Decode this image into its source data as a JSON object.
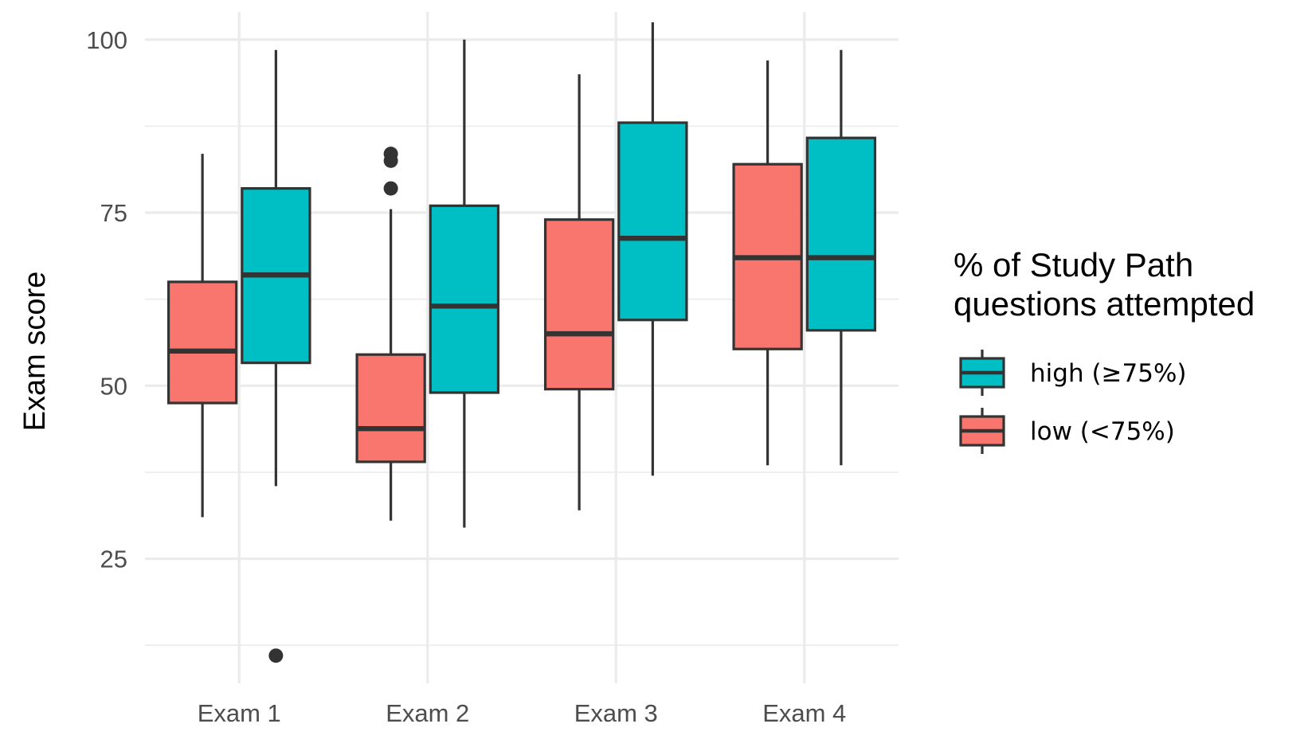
{
  "chart_data": {
    "type": "boxplot",
    "title": "",
    "xlabel": "",
    "ylabel": "Exam score",
    "ylim": [
      7,
      104
    ],
    "yticks": [
      25,
      50,
      75,
      100
    ],
    "grid": true,
    "legend_position": "right",
    "categories": [
      "Exam 1",
      "Exam 2",
      "Exam 3",
      "Exam 4"
    ],
    "legend": {
      "title_lines": [
        "% of Study Path",
        "questions attempted"
      ],
      "entries": [
        {
          "series": "high",
          "label": "high (≥75%)"
        },
        {
          "series": "low",
          "label": "low (<75%)"
        }
      ]
    },
    "series": [
      {
        "key": "low",
        "name": "low (<75%)",
        "color": "#F8766D",
        "boxes": [
          {
            "category": "Exam 1",
            "whisker_low": 31,
            "q1": 47.5,
            "median": 55,
            "q3": 65,
            "whisker_high": 83.5,
            "outliers": []
          },
          {
            "category": "Exam 2",
            "whisker_low": 30.5,
            "q1": 39,
            "median": 43.8,
            "q3": 54.5,
            "whisker_high": 75.5,
            "outliers": [
              78.5,
              82.5,
              83.5
            ]
          },
          {
            "category": "Exam 3",
            "whisker_low": 32,
            "q1": 49.5,
            "median": 57.5,
            "q3": 74,
            "whisker_high": 95,
            "outliers": []
          },
          {
            "category": "Exam 4",
            "whisker_low": 38.5,
            "q1": 55.3,
            "median": 68.5,
            "q3": 82,
            "whisker_high": 97,
            "outliers": []
          }
        ]
      },
      {
        "key": "high",
        "name": "high (≥75%)",
        "color": "#00BFC4",
        "boxes": [
          {
            "category": "Exam 1",
            "whisker_low": 35.5,
            "q1": 53.3,
            "median": 66,
            "q3": 78.5,
            "whisker_high": 98.5,
            "outliers": [
              11
            ]
          },
          {
            "category": "Exam 2",
            "whisker_low": 29.5,
            "q1": 49,
            "median": 61.5,
            "q3": 76,
            "whisker_high": 100,
            "outliers": []
          },
          {
            "category": "Exam 3",
            "whisker_low": 37,
            "q1": 59.5,
            "median": 71.3,
            "q3": 88,
            "whisker_high": 102.5,
            "outliers": []
          },
          {
            "category": "Exam 4",
            "whisker_low": 38.5,
            "q1": 58,
            "median": 68.5,
            "q3": 85.8,
            "whisker_high": 98.5,
            "outliers": []
          }
        ]
      }
    ]
  }
}
